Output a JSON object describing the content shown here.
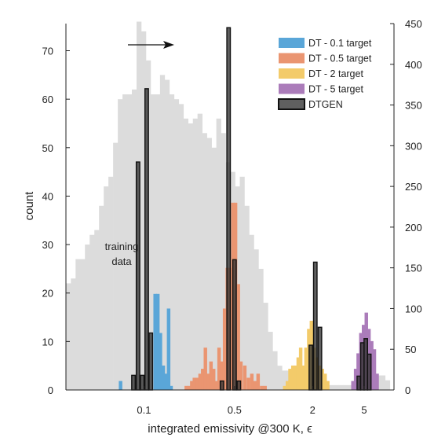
{
  "chart_data": {
    "type": "bar",
    "title": "",
    "xlabel": "integrated emissivity @300 K, ϵ",
    "ylabel": "count",
    "y2label": "",
    "xscale": "log",
    "xlim": [
      0.025,
      8.5
    ],
    "ylim": [
      0,
      75.6
    ],
    "y2lim": [
      0,
      450
    ],
    "xticks": [
      0.1,
      0.5,
      2,
      5
    ],
    "xtick_labels": [
      "0.1",
      "0.5",
      "2",
      "5"
    ],
    "yticks": [
      0,
      10,
      20,
      30,
      40,
      50,
      60,
      70
    ],
    "y2ticks": [
      0,
      50,
      100,
      150,
      200,
      250,
      300,
      350,
      400,
      450
    ],
    "grid": false,
    "legend_position": "top-right",
    "annotations": [
      {
        "text": "training",
        "x": 0.055,
        "y": 29.5
      },
      {
        "text": "data",
        "x": 0.055,
        "y": 26.2
      }
    ],
    "arrow": {
      "from": [
        0.065,
        71.5
      ],
      "to": [
        0.095,
        71.5
      ]
    },
    "background_histogram": {
      "name": "training data",
      "axis": "left",
      "color": "#dcdcdc",
      "edges_log10": [
        -1.6,
        -1.5638,
        -1.5276,
        -1.4914,
        -1.4552,
        -1.419,
        -1.3828,
        -1.3466,
        -1.3104,
        -1.2742,
        -1.238,
        -1.2018,
        -1.1656,
        -1.1294,
        -1.0932,
        -1.057,
        -1.0208,
        -0.9846,
        -0.9484,
        -0.9122,
        -0.876,
        -0.8398,
        -0.8036,
        -0.7674,
        -0.7312,
        -0.695,
        -0.6588,
        -0.6226,
        -0.5864,
        -0.5502,
        -0.514,
        -0.4778,
        -0.4416,
        -0.4054,
        -0.3692,
        -0.333,
        -0.2968,
        -0.2606,
        -0.2244,
        -0.1882,
        -0.152,
        -0.1158,
        -0.0796,
        -0.0434,
        -0.0072,
        0.029,
        0.0652,
        0.1014,
        0.1376,
        0.1738,
        0.21,
        0.2462,
        0.2824,
        0.3186,
        0.3548,
        0.391,
        0.4272,
        0.4634,
        0.4996,
        0.5358,
        0.572,
        0.6082,
        0.6444,
        0.6806,
        0.7168,
        0.753,
        0.7892,
        0.8254,
        0.8616,
        0.8978
      ],
      "counts": [
        22,
        23,
        27,
        27,
        30,
        32,
        33,
        38,
        42,
        44,
        51,
        60,
        61,
        61,
        62,
        76,
        74,
        68,
        61,
        61,
        65,
        64,
        61,
        60,
        59,
        56,
        55,
        56,
        57,
        53,
        52,
        50,
        56,
        53,
        47,
        45,
        42,
        44,
        38,
        32,
        29,
        25,
        18,
        12,
        8,
        5,
        4,
        4,
        3,
        3,
        2,
        2,
        2,
        1,
        1,
        1,
        1,
        1,
        1,
        1,
        1,
        1,
        1,
        2,
        3,
        3,
        3,
        3,
        2
      ]
    },
    "series": [
      {
        "name": "DT - 0.1 target",
        "axis": "right",
        "color": "#5aa6d8",
        "bars": [
          {
            "x": 0.066,
            "value": 11
          },
          {
            "x": 0.122,
            "value": 118
          },
          {
            "x": 0.128,
            "value": 118
          },
          {
            "x": 0.134,
            "value": 70
          },
          {
            "x": 0.141,
            "value": 30
          },
          {
            "x": 0.148,
            "value": 20
          },
          {
            "x": 0.155,
            "value": 100
          },
          {
            "x": 0.162,
            "value": 5
          }
        ]
      },
      {
        "name": "DT - 0.5 target",
        "axis": "right",
        "color": "#ea9571",
        "bars": [
          {
            "x": 0.212,
            "value": 5
          },
          {
            "x": 0.223,
            "value": 5
          },
          {
            "x": 0.234,
            "value": 11
          },
          {
            "x": 0.245,
            "value": 15
          },
          {
            "x": 0.258,
            "value": 15
          },
          {
            "x": 0.271,
            "value": 20
          },
          {
            "x": 0.284,
            "value": 26
          },
          {
            "x": 0.298,
            "value": 52
          },
          {
            "x": 0.313,
            "value": 20
          },
          {
            "x": 0.329,
            "value": 35
          },
          {
            "x": 0.345,
            "value": 26
          },
          {
            "x": 0.362,
            "value": 11
          },
          {
            "x": 0.38,
            "value": 52
          },
          {
            "x": 0.399,
            "value": 35
          },
          {
            "x": 0.419,
            "value": 100
          },
          {
            "x": 0.44,
            "value": 150
          },
          {
            "x": 0.462,
            "value": 150
          },
          {
            "x": 0.485,
            "value": 230
          },
          {
            "x": 0.509,
            "value": 230
          },
          {
            "x": 0.535,
            "value": 130
          },
          {
            "x": 0.56,
            "value": 35
          },
          {
            "x": 0.6,
            "value": 30
          },
          {
            "x": 0.64,
            "value": 15
          },
          {
            "x": 0.68,
            "value": 20
          },
          {
            "x": 0.72,
            "value": 11
          },
          {
            "x": 0.76,
            "value": 20
          },
          {
            "x": 0.81,
            "value": 5
          },
          {
            "x": 0.86,
            "value": 5
          }
        ]
      },
      {
        "name": "DT - 2 target",
        "axis": "right",
        "color": "#f3cb6a",
        "bars": [
          {
            "x": 1.22,
            "value": 5
          },
          {
            "x": 1.28,
            "value": 11
          },
          {
            "x": 1.34,
            "value": 26
          },
          {
            "x": 1.41,
            "value": 30
          },
          {
            "x": 1.48,
            "value": 30
          },
          {
            "x": 1.55,
            "value": 40
          },
          {
            "x": 1.62,
            "value": 52
          },
          {
            "x": 1.7,
            "value": 30
          },
          {
            "x": 1.78,
            "value": 52
          },
          {
            "x": 1.87,
            "value": 75
          },
          {
            "x": 1.96,
            "value": 85
          },
          {
            "x": 2.06,
            "value": 52
          },
          {
            "x": 2.16,
            "value": 40
          },
          {
            "x": 2.27,
            "value": 30
          },
          {
            "x": 2.38,
            "value": 26
          },
          {
            "x": 2.5,
            "value": 20
          },
          {
            "x": 2.62,
            "value": 11
          }
        ]
      },
      {
        "name": "DT - 5 target",
        "axis": "right",
        "color": "#ab7cba",
        "bars": [
          {
            "x": 4.1,
            "value": 11
          },
          {
            "x": 4.3,
            "value": 26
          },
          {
            "x": 4.5,
            "value": 45
          },
          {
            "x": 4.72,
            "value": 70
          },
          {
            "x": 4.95,
            "value": 80
          },
          {
            "x": 5.2,
            "value": 95
          },
          {
            "x": 5.45,
            "value": 75
          },
          {
            "x": 5.72,
            "value": 60
          },
          {
            "x": 6.0,
            "value": 50
          },
          {
            "x": 6.3,
            "value": 20
          }
        ]
      },
      {
        "name": "DTGEN",
        "axis": "right",
        "color": "#333333",
        "bars": [
          {
            "x": 0.083,
            "value": 18
          },
          {
            "x": 0.09,
            "value": 280
          },
          {
            "x": 0.097,
            "value": 18
          },
          {
            "x": 0.105,
            "value": 370
          },
          {
            "x": 0.113,
            "value": 70
          },
          {
            "x": 0.4,
            "value": 11
          },
          {
            "x": 0.45,
            "value": 445
          },
          {
            "x": 0.5,
            "value": 160
          },
          {
            "x": 0.54,
            "value": 11
          },
          {
            "x": 1.94,
            "value": 55
          },
          {
            "x": 2.1,
            "value": 157
          },
          {
            "x": 2.28,
            "value": 77
          },
          {
            "x": 4.55,
            "value": 17
          },
          {
            "x": 4.85,
            "value": 58
          },
          {
            "x": 5.15,
            "value": 63
          },
          {
            "x": 5.48,
            "value": 44
          }
        ]
      }
    ]
  }
}
